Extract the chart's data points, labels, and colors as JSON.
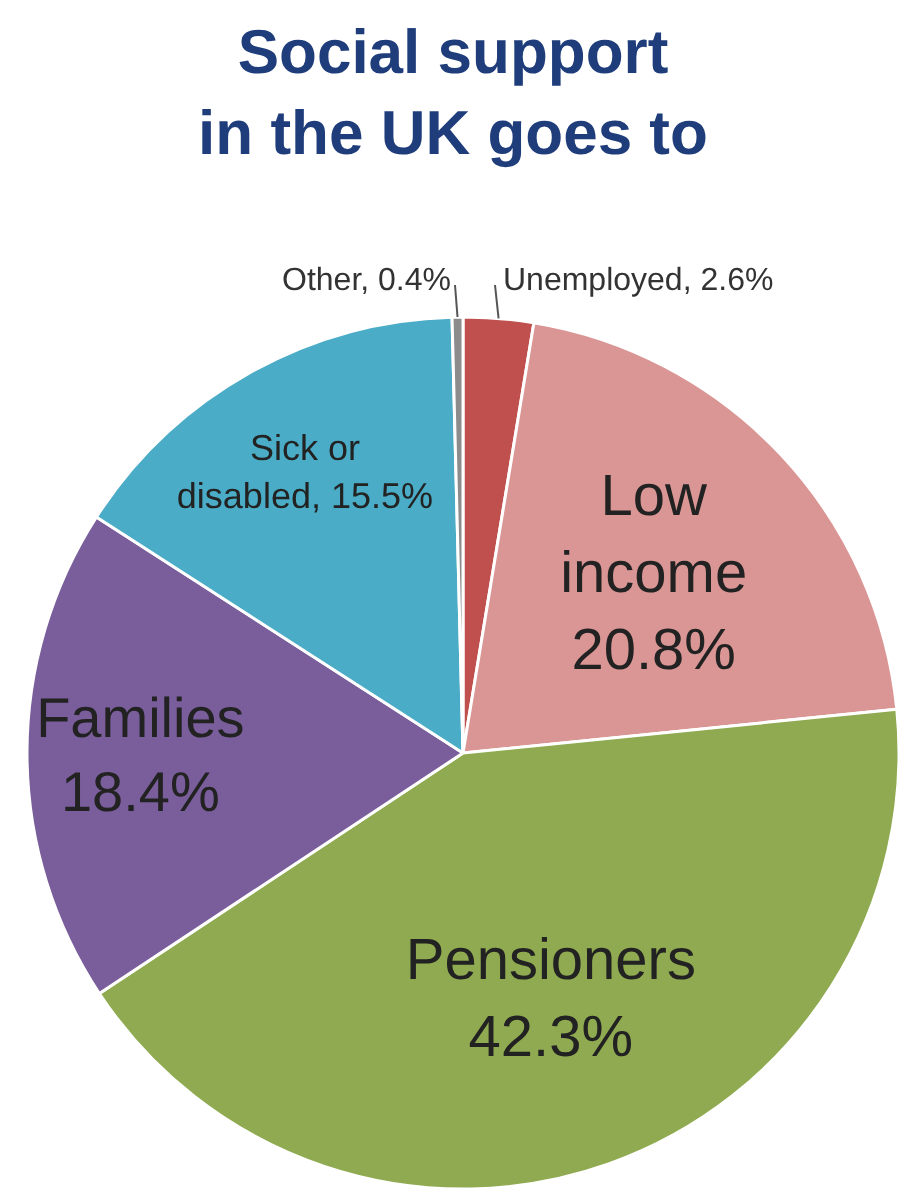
{
  "chart_data": {
    "type": "pie",
    "title": "Social support in the UK goes to",
    "categories": [
      "Unemployed",
      "Low income",
      "Pensioners",
      "Families",
      "Sick or disabled",
      "Other"
    ],
    "values": [
      2.6,
      20.8,
      42.3,
      18.4,
      15.5,
      0.4
    ],
    "value_labels": [
      "2.6%",
      "20.8%",
      "42.3%",
      "18.4%",
      "15.5%",
      "0.4%"
    ],
    "colors": [
      "#c0504d",
      "#d99694",
      "#8faa50",
      "#7a5e9c",
      "#4aacc6",
      "#8c8c8c"
    ]
  }
}
